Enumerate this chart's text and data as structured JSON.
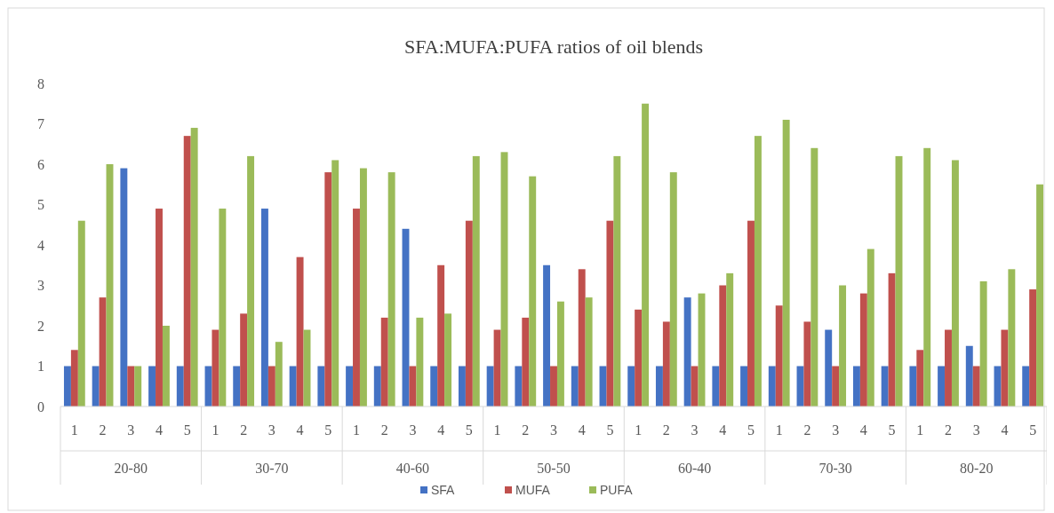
{
  "chart_data": {
    "type": "bar",
    "title": "SFA:MUFA:PUFA ratios of oil blends",
    "categories": [
      "1",
      "2",
      "3",
      "4",
      "5",
      "1",
      "2",
      "3",
      "4",
      "5",
      "1",
      "2",
      "3",
      "4",
      "5",
      "1",
      "2",
      "3",
      "4",
      "5",
      "1",
      "2",
      "3",
      "4",
      "5",
      "1",
      "2",
      "3",
      "4",
      "5",
      "1",
      "2",
      "3",
      "4",
      "5"
    ],
    "annotations": [
      "20-80",
      "30-70",
      "40-60",
      "50-50",
      "60-40",
      "70-30",
      "80-20"
    ],
    "series": [
      {
        "name": "SFA",
        "color": "#4472c4",
        "values": [
          1,
          1,
          5.9,
          1,
          1,
          1,
          1,
          4.9,
          1,
          1,
          1,
          1,
          4.4,
          1,
          1,
          1,
          1,
          3.5,
          1,
          1,
          1,
          1,
          2.7,
          1,
          1,
          1,
          1,
          1.9,
          1,
          1,
          1,
          1,
          1.5,
          1,
          1
        ]
      },
      {
        "name": "MUFA",
        "color": "#c0504d",
        "values": [
          1.4,
          2.7,
          1,
          4.9,
          6.7,
          1.9,
          2.3,
          1,
          3.7,
          5.8,
          4.9,
          2.2,
          1,
          3.5,
          4.6,
          1.9,
          2.2,
          1,
          3.4,
          4.6,
          2.4,
          2.1,
          1,
          3.0,
          4.6,
          2.5,
          2.1,
          1,
          2.8,
          3.3,
          1.4,
          1.9,
          1,
          1.9,
          2.9
        ]
      },
      {
        "name": "PUFA",
        "color": "#9bbb59",
        "values": [
          4.6,
          6.0,
          1,
          2.0,
          6.9,
          4.9,
          6.2,
          1.6,
          1.9,
          6.1,
          5.9,
          5.8,
          2.2,
          2.3,
          6.2,
          6.3,
          5.7,
          2.6,
          2.7,
          6.2,
          7.5,
          5.8,
          2.8,
          3.3,
          6.7,
          7.1,
          6.4,
          3.0,
          3.9,
          6.2,
          6.4,
          6.1,
          3.1,
          3.4,
          5.5
        ]
      }
    ],
    "ylim": [
      0,
      8
    ],
    "yticks": [
      0,
      1,
      2,
      3,
      4,
      5,
      6,
      7,
      8
    ],
    "legend": "bottom"
  }
}
